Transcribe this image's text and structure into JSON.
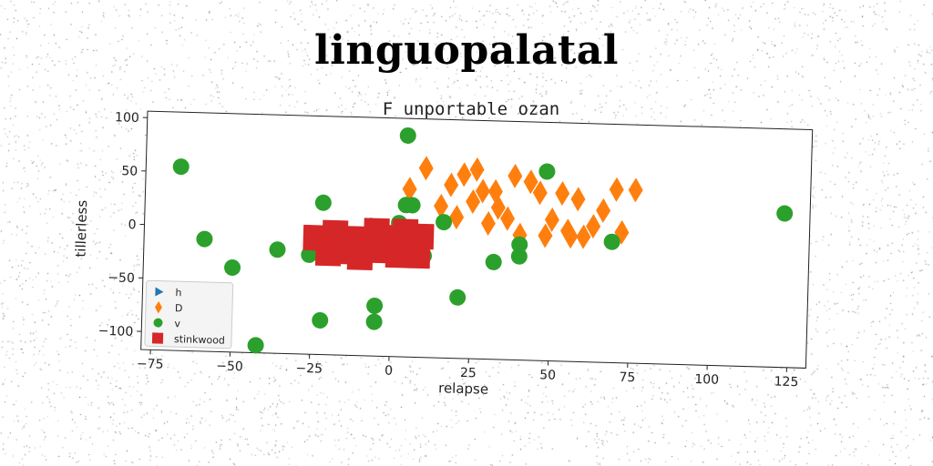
{
  "figure": {
    "title": "linguopalatal"
  },
  "chart_data": {
    "type": "scatter",
    "title": "F unportable ozan",
    "xlabel": "relapse",
    "ylabel": "tillerless",
    "xlim": [
      -78,
      131
    ],
    "ylim": [
      -117,
      106
    ],
    "xticks": [
      -75,
      -50,
      -25,
      0,
      25,
      50,
      75,
      100,
      125
    ],
    "yticks": [
      -100,
      -50,
      0,
      50,
      100
    ],
    "grid": false,
    "legend_position": "lower-left",
    "series": [
      {
        "name": "h",
        "marker": "triangle-right",
        "color": "#1f77b4",
        "points": [
          [
            -5,
            5
          ],
          [
            -2,
            3
          ],
          [
            0,
            0
          ]
        ]
      },
      {
        "name": "D",
        "marker": "diamond",
        "color": "#ff7f0e",
        "points": [
          [
            5,
            40
          ],
          [
            10,
            60
          ],
          [
            15,
            25
          ],
          [
            18,
            45
          ],
          [
            20,
            15
          ],
          [
            22,
            55
          ],
          [
            25,
            30
          ],
          [
            26,
            60
          ],
          [
            28,
            40
          ],
          [
            30,
            10
          ],
          [
            32,
            40
          ],
          [
            33,
            25
          ],
          [
            36,
            15
          ],
          [
            38,
            55
          ],
          [
            40,
            0
          ],
          [
            43,
            50
          ],
          [
            46,
            40
          ],
          [
            48,
            0
          ],
          [
            50,
            15
          ],
          [
            53,
            40
          ],
          [
            55,
            5
          ],
          [
            56,
            0
          ],
          [
            58,
            35
          ],
          [
            60,
            0
          ],
          [
            63,
            10
          ],
          [
            66,
            25
          ],
          [
            70,
            45
          ],
          [
            72,
            5
          ],
          [
            76,
            45
          ]
        ]
      },
      {
        "name": "v",
        "marker": "circle",
        "color": "#2ca02c",
        "points": [
          [
            -67,
            55
          ],
          [
            -59,
            -12
          ],
          [
            -50,
            -38
          ],
          [
            -36,
            -20
          ],
          [
            -26,
            -24
          ],
          [
            -22,
            25
          ],
          [
            -5,
            -70
          ],
          [
            -5,
            -85
          ],
          [
            -22,
            -85
          ],
          [
            -42,
            -110
          ],
          [
            2,
            8
          ],
          [
            4,
            25
          ],
          [
            6,
            25
          ],
          [
            4,
            90
          ],
          [
            10,
            -22
          ],
          [
            16,
            10
          ],
          [
            21,
            -60
          ],
          [
            32,
            -26
          ],
          [
            40,
            -20
          ],
          [
            40,
            -9
          ],
          [
            48,
            60
          ],
          [
            69,
            -4
          ],
          [
            123,
            27
          ]
        ]
      },
      {
        "name": "stinkwood",
        "marker": "square",
        "color": "#d62728",
        "points": [
          [
            -24,
            -8
          ],
          [
            -20,
            -22
          ],
          [
            -18,
            -3
          ],
          [
            -15,
            -20
          ],
          [
            -12,
            -8
          ],
          [
            -10,
            -25
          ],
          [
            -7,
            -12
          ],
          [
            -5,
            0
          ],
          [
            -3,
            -18
          ],
          [
            0,
            -6
          ],
          [
            2,
            -22
          ],
          [
            4,
            0
          ],
          [
            6,
            -12
          ],
          [
            8,
            -22
          ],
          [
            9,
            -4
          ]
        ]
      }
    ]
  }
}
